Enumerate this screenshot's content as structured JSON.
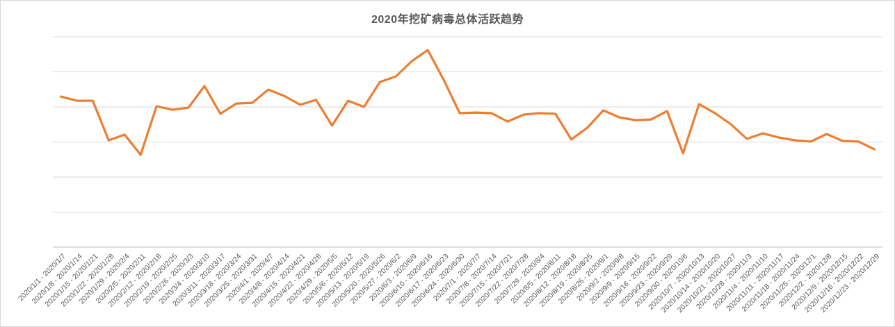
{
  "chart_data": {
    "type": "line",
    "title": "2020年挖矿病毒总体活跃趋势",
    "categories": [
      "2020/1/1 - 2020/1/7",
      "2020/1/8 - 2020/1/14",
      "2020/1/15 - 2020/1/21",
      "2020/1/22 - 2020/1/28",
      "2020/1/29 - 2020/2/4",
      "2020/2/5 - 2020/2/11",
      "2020/2/12 - 2020/2/18",
      "2020/2/19 - 2020/2/25",
      "2020/2/26 - 2020/3/3",
      "2020/3/4 - 2020/3/10",
      "2020/3/11 - 2020/3/17",
      "2020/3/18 - 2020/3/24",
      "2020/3/25 - 2020/3/31",
      "2020/4/1 - 2020/4/7",
      "2020/4/8 - 2020/4/14",
      "2020/4/15 - 2020/4/21",
      "2020/4/22 - 2020/4/28",
      "2020/4/29 - 2020/5/5",
      "2020/5/6 - 2020/5/12",
      "2020/5/13 - 2020/5/19",
      "2020/5/20 - 2020/5/26",
      "2020/5/27 - 2020/6/2",
      "2020/6/3 - 2020/6/9",
      "2020/6/10 - 2020/6/16",
      "2020/6/17 - 2020/6/23",
      "2020/6/24 - 2020/6/30",
      "2020/7/1 - 2020/7/7",
      "2020/7/8 - 2020/7/14",
      "2020/7/15 - 2020/7/21",
      "2020/7/22 - 2020/7/28",
      "2020/7/29 - 2020/8/4",
      "2020/8/5 - 2020/8/11",
      "2020/8/12 - 2020/8/18",
      "2020/8/19 - 2020/8/25",
      "2020/8/26 - 2020/9/1",
      "2020/9/2 - 2020/9/8",
      "2020/9/9 - 2020/9/15",
      "2020/9/16 - 2020/9/22",
      "2020/9/23 - 2020/9/29",
      "2020/9/30 - 2020/10/6",
      "2020/10/7 - 2020/10/13",
      "2020/10/14 - 2020/10/20",
      "2020/10/21 - 2020/10/27",
      "2020/10/28 - 2020/11/3",
      "2020/11/4 - 2020/11/10",
      "2020/11/11 - 2020/11/17",
      "2020/11/18 - 2020/11/24",
      "2020/11/25 - 2020/12/1",
      "2020/12/2 - 2020/12/8",
      "2020/12/9 - 2020/12/15",
      "2020/12/16 - 2020/12/22",
      "2020/12/23 - 2020/12/29"
    ],
    "values": [
      71.6,
      69.6,
      69.6,
      50.8,
      53.5,
      43.9,
      67.0,
      65.3,
      66.3,
      76.6,
      63.4,
      68.3,
      68.6,
      74.9,
      71.9,
      67.7,
      70.0,
      57.8,
      69.6,
      66.7,
      78.5,
      81.2,
      88.4,
      93.7,
      79.5,
      63.7,
      64.0,
      63.7,
      59.7,
      63.0,
      63.7,
      63.4,
      51.2,
      56.8,
      65.0,
      61.7,
      60.4,
      60.7,
      64.7,
      44.6,
      68.0,
      63.7,
      58.4,
      51.5,
      54.1,
      52.1,
      50.8,
      50.2,
      53.8,
      50.5,
      50.2,
      46.5
    ],
    "xlabel": "",
    "ylabel": "",
    "ylim": [
      0,
      100
    ],
    "y_axis_labels_visible": false,
    "grid": true,
    "gridline_count": 7,
    "legend": false
  },
  "colors": {
    "line": "#ED7D31",
    "gridline": "#D9D9D9",
    "axis": "#BFBFBF",
    "text": "#595959",
    "background": "#FFFFFF"
  }
}
